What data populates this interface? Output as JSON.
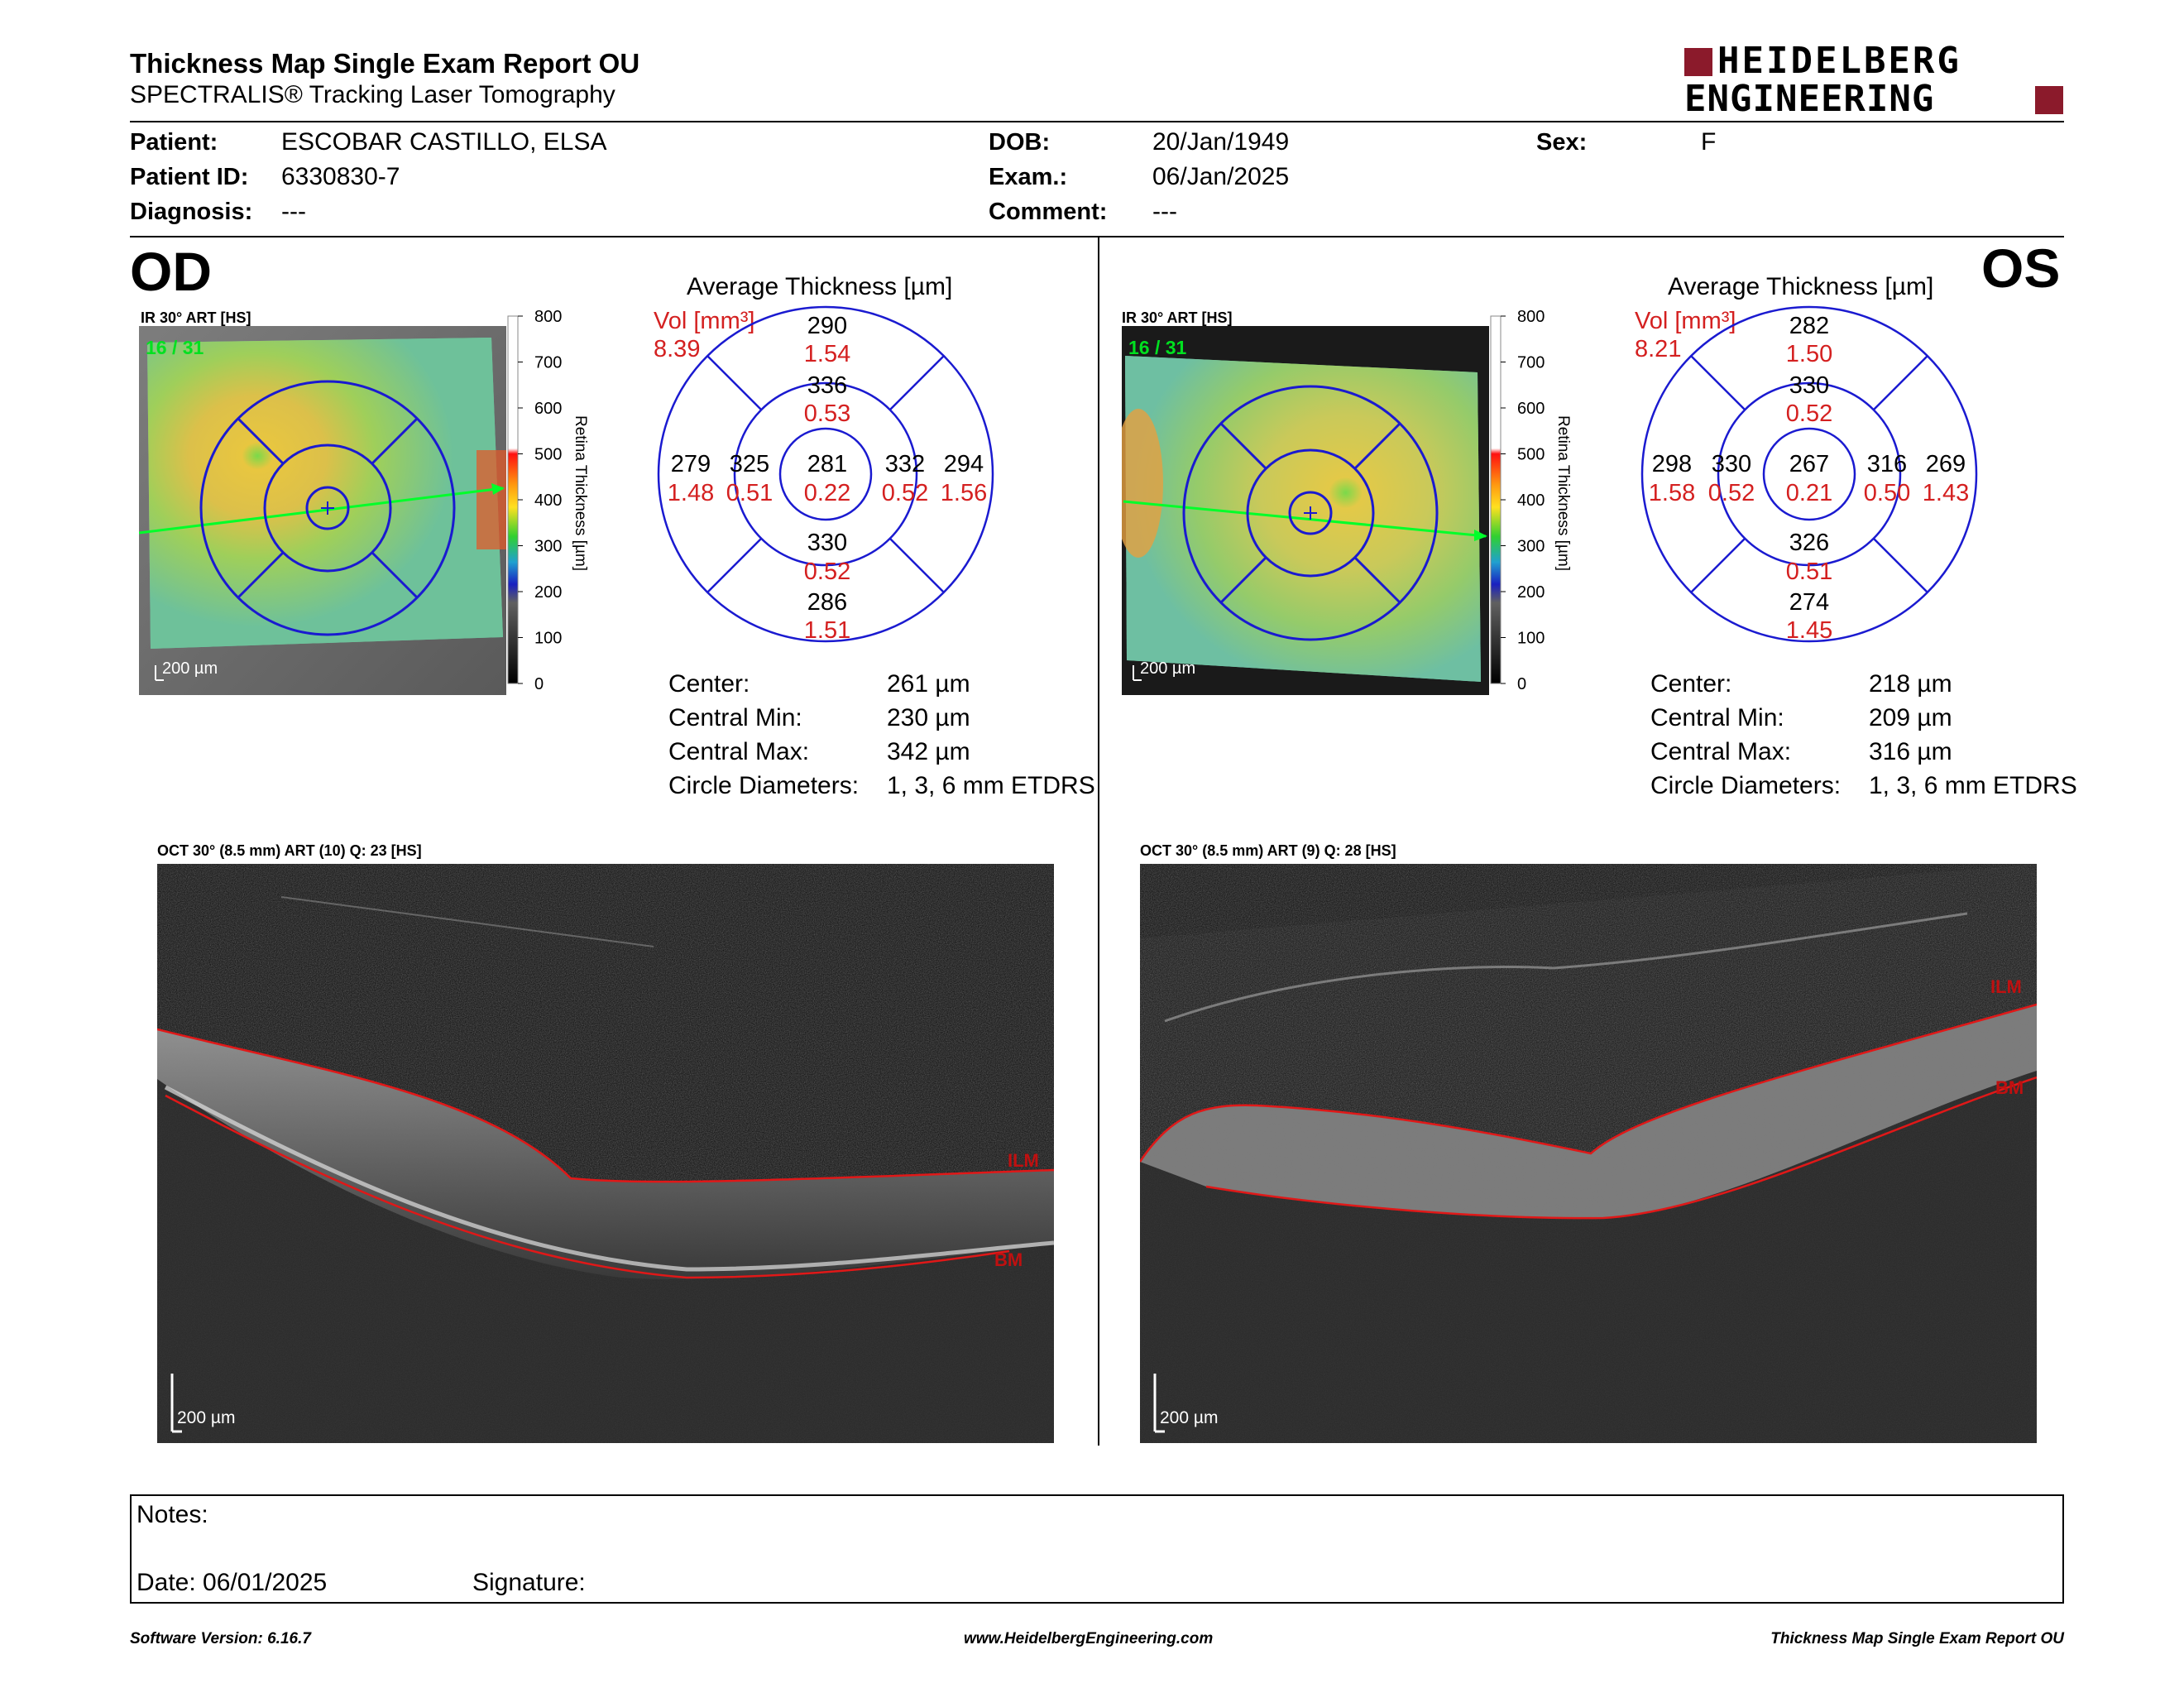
{
  "header": {
    "title": "Thickness Map Single Exam Report OU",
    "subtitle": "SPECTRALIS® Tracking Laser Tomography",
    "logo_line1": "HEIDELBERG",
    "logo_line2": "ENGINEERING",
    "logo_accent": "#8B1A2B"
  },
  "patient": {
    "patient_label": "Patient:",
    "patient_value": "ESCOBAR CASTILLO, ELSA",
    "id_label": "Patient ID:",
    "id_value": "6330830-7",
    "diagnosis_label": "Diagnosis:",
    "diagnosis_value": "---",
    "dob_label": "DOB:",
    "dob_value": "20/Jan/1949",
    "exam_label": "Exam.:",
    "exam_value": "06/Jan/2025",
    "comment_label": "Comment:",
    "comment_value": "---",
    "sex_label": "Sex:",
    "sex_value": "F"
  },
  "od": {
    "eye_label": "OD",
    "ir_label": "IR 30° ART [HS]",
    "scan_counter": "16 / 31",
    "scale_bar": "200 µm",
    "avg_title": "Average Thickness [µm]",
    "vol_label": "Vol [mm³]",
    "vol_value": "8.39",
    "grid": {
      "outer_sup": "290",
      "outer_sup_vol": "1.54",
      "inner_sup": "336",
      "inner_sup_vol": "0.53",
      "outer_temp": "279",
      "outer_temp_vol": "1.48",
      "inner_temp": "325",
      "inner_temp_vol": "0.51",
      "center": "281",
      "center_vol": "0.22",
      "inner_nas": "332",
      "inner_nas_vol": "0.52",
      "outer_nas": "294",
      "outer_nas_vol": "1.56",
      "inner_inf": "330",
      "inner_inf_vol": "0.52",
      "outer_inf": "286",
      "outer_inf_vol": "1.51"
    },
    "stats": {
      "center_label": "Center:",
      "center_value": "261 µm",
      "min_label": "Central Min:",
      "min_value": "230 µm",
      "max_label": "Central Max:",
      "max_value": "342 µm",
      "diam_label": "Circle Diameters:",
      "diam_value": "1, 3, 6 mm ETDRS"
    },
    "oct_label": "OCT 30° (8.5 mm) ART (10) Q: 23 [HS]",
    "oct_scale": "200 µm",
    "ilm": "ILM",
    "bm": "BM"
  },
  "os": {
    "eye_label": "OS",
    "ir_label": "IR 30° ART [HS]",
    "scan_counter": "16 / 31",
    "scale_bar": "200 µm",
    "avg_title": "Average Thickness [µm]",
    "vol_label": "Vol [mm³]",
    "vol_value": "8.21",
    "grid": {
      "outer_sup": "282",
      "outer_sup_vol": "1.50",
      "inner_sup": "330",
      "inner_sup_vol": "0.52",
      "outer_temp": "298",
      "outer_temp_vol": "1.58",
      "inner_temp": "330",
      "inner_temp_vol": "0.52",
      "center": "267",
      "center_vol": "0.21",
      "inner_nas": "316",
      "inner_nas_vol": "0.50",
      "outer_nas": "269",
      "outer_nas_vol": "1.43",
      "inner_inf": "326",
      "inner_inf_vol": "0.51",
      "outer_inf": "274",
      "outer_inf_vol": "1.45"
    },
    "stats": {
      "center_label": "Center:",
      "center_value": "218 µm",
      "min_label": "Central Min:",
      "min_value": "209 µm",
      "max_label": "Central Max:",
      "max_value": "316 µm",
      "diam_label": "Circle Diameters:",
      "diam_value": "1, 3, 6 mm ETDRS"
    },
    "oct_label": "OCT 30° (8.5 mm) ART (9) Q: 28 [HS]",
    "oct_scale": "200 µm",
    "ilm": "ILM",
    "bm": "BM"
  },
  "colorbar": {
    "ticks": [
      "800",
      "700",
      "600",
      "500",
      "400",
      "300",
      "200",
      "100",
      "0"
    ],
    "title": "Retina Thickness [µm]"
  },
  "notes": {
    "notes_label": "Notes:",
    "date_label": "Date: 06/01/2025",
    "signature_label": "Signature:"
  },
  "footer": {
    "software": "Software Version: 6.16.7",
    "website": "www.HeidelbergEngineering.com",
    "report": "Thickness Map Single Exam Report OU"
  }
}
